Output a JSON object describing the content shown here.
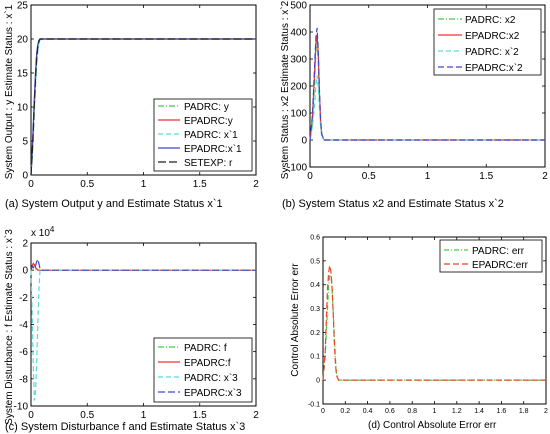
{
  "chart_data": [
    {
      "type": "line",
      "caption": "(a) System Output y and Estimate Status x`1",
      "ylabel": "System Output : y    Estimate Status : x`1",
      "xlabel": "",
      "xlim": [
        0,
        2
      ],
      "ylim": [
        0,
        25
      ],
      "xticks": [
        "0",
        "0.5",
        "1",
        "1.5",
        "2"
      ],
      "yticks": [
        "0",
        "5",
        "10",
        "15",
        "20",
        "25"
      ],
      "legend_position": "lower-right",
      "grid": false,
      "x": [
        0,
        0.01,
        0.02,
        0.03,
        0.04,
        0.05,
        0.06,
        0.07,
        0.08,
        0.1,
        0.15,
        2
      ],
      "series": [
        {
          "name": "PADRC: y",
          "color": "#44cc44",
          "dash": "6,2,1,2",
          "values": [
            0,
            2.5,
            6,
            10,
            13.5,
            16.5,
            18.5,
            19.5,
            19.9,
            20,
            20,
            20
          ]
        },
        {
          "name": "EPADRC:y",
          "color": "#ee3333",
          "dash": "",
          "values": [
            0,
            3,
            7,
            11,
            14.5,
            17.5,
            19,
            19.8,
            20,
            20,
            20,
            20
          ]
        },
        {
          "name": "PADRC: x`1",
          "color": "#55dddd",
          "dash": "5,3",
          "values": [
            0,
            2.2,
            5.5,
            9.5,
            13,
            16,
            18.2,
            19.4,
            19.9,
            20,
            20,
            20
          ]
        },
        {
          "name": "EPADRC:x`1",
          "color": "#4444cc",
          "dash": "",
          "values": [
            0,
            3.2,
            7.5,
            11.5,
            15,
            17.8,
            19.2,
            19.8,
            20,
            20,
            20,
            20
          ]
        },
        {
          "name": "SETEXP: r",
          "color": "#222222",
          "dash": "8,3",
          "values": [
            0,
            2.6,
            6.5,
            10.5,
            14,
            17,
            18.8,
            19.6,
            20,
            20,
            20,
            20
          ]
        }
      ]
    },
    {
      "type": "line",
      "caption": "(b) System Status x2 and Estimate Status x`2",
      "ylabel": "System Status : x2    Estimate Status : x`2",
      "xlabel": "",
      "xlim": [
        0,
        2
      ],
      "ylim": [
        -100,
        500
      ],
      "xticks": [
        "0",
        "0.5",
        "1",
        "1.5",
        "2"
      ],
      "yticks": [
        "-100",
        "0",
        "100",
        "200",
        "300",
        "400",
        "500"
      ],
      "legend_position": "top-right",
      "grid": false,
      "x": [
        0,
        0.02,
        0.04,
        0.05,
        0.06,
        0.07,
        0.08,
        0.09,
        0.1,
        0.12,
        0.15,
        2
      ],
      "series": [
        {
          "name": "PADRC: x2",
          "color": "#44cc44",
          "dash": "6,2,1,2",
          "values": [
            0,
            60,
            220,
            330,
            370,
            300,
            160,
            60,
            15,
            0,
            0,
            0
          ]
        },
        {
          "name": "EPADRC:x2",
          "color": "#ee3333",
          "dash": "",
          "values": [
            0,
            80,
            260,
            360,
            390,
            320,
            180,
            70,
            20,
            0,
            0,
            0
          ]
        },
        {
          "name": "PADRC: x`2",
          "color": "#55dddd",
          "dash": "5,3",
          "values": [
            0,
            50,
            130,
            200,
            240,
            200,
            120,
            50,
            10,
            0,
            0,
            0
          ]
        },
        {
          "name": "EPADRC:x`2",
          "color": "#4444cc",
          "dash": "6,3",
          "values": [
            0,
            90,
            280,
            380,
            415,
            340,
            190,
            75,
            20,
            0,
            0,
            0
          ]
        }
      ]
    },
    {
      "type": "line",
      "caption": "(c) System Disturbance f and Estimate Status x`3",
      "ylabel": "System Disturbance : f    Estimate Status : x`3",
      "xlabel": "",
      "multiplier": "x 10",
      "multiplier_exp": "4",
      "xlim": [
        0,
        2
      ],
      "ylim": [
        -10,
        2
      ],
      "xticks": [
        "0",
        "0.5",
        "1",
        "1.5",
        "2"
      ],
      "yticks": [
        "-10",
        "-8",
        "-6",
        "-4",
        "-2",
        "0",
        "2"
      ],
      "legend_position": "lower-right",
      "grid": false,
      "x": [
        0,
        0.01,
        0.02,
        0.03,
        0.04,
        0.05,
        0.06,
        0.07,
        0.08,
        0.1,
        0.15,
        2
      ],
      "series": [
        {
          "name": "PADRC: f",
          "color": "#44cc44",
          "dash": "6,2,1,2",
          "values": [
            0,
            0.2,
            0.3,
            0.2,
            0.1,
            0,
            0,
            0,
            0,
            0,
            0,
            0
          ]
        },
        {
          "name": "EPADRC:f",
          "color": "#ee3333",
          "dash": "",
          "values": [
            0,
            0.3,
            0.5,
            0.4,
            0.2,
            0.1,
            0,
            0,
            0,
            0,
            0,
            0
          ]
        },
        {
          "name": "PADRC: x`3",
          "color": "#55dddd",
          "dash": "5,3",
          "values": [
            0,
            -3,
            -7,
            -9.6,
            -9,
            -7,
            -4,
            -1.5,
            0,
            0,
            0,
            0
          ]
        },
        {
          "name": "EPADRC:x`3",
          "color": "#4444cc",
          "dash": "7,3",
          "values": [
            0,
            0.3,
            0.2,
            0.1,
            0.3,
            0.6,
            0.8,
            0.5,
            0.1,
            0,
            0,
            0
          ]
        }
      ]
    },
    {
      "type": "line",
      "caption": "(d)  Control Absolute Error err",
      "ylabel": "Control Absolute Error err",
      "xlabel": "",
      "xlim": [
        0,
        2
      ],
      "ylim": [
        -0.1,
        0.6
      ],
      "xticks": [
        "0",
        "0.2",
        "0.4",
        "0.6",
        "0.8",
        "1",
        "1.2",
        "1.4",
        "1.6",
        "1.8",
        "2"
      ],
      "yticks": [
        "-0.1",
        "0",
        "0.1",
        "0.2",
        "0.3",
        "0.4",
        "0.5",
        "0.6"
      ],
      "legend_position": "top-right",
      "grid": false,
      "x": [
        0,
        0.02,
        0.03,
        0.04,
        0.05,
        0.06,
        0.07,
        0.08,
        0.09,
        0.1,
        0.11,
        0.12,
        0.14,
        2
      ],
      "series": [
        {
          "name": "PADRC: err",
          "color": "#44cc44",
          "dash": "5,2,1,2",
          "values": [
            0,
            0.1,
            0.2,
            0.3,
            0.39,
            0.44,
            0.44,
            0.4,
            0.3,
            0.2,
            0.1,
            0.03,
            0,
            0
          ]
        },
        {
          "name": "EPADRC:err",
          "color": "#ee4422",
          "dash": "6,3",
          "values": [
            0,
            0.12,
            0.25,
            0.38,
            0.45,
            0.48,
            0.46,
            0.4,
            0.3,
            0.18,
            0.08,
            0.02,
            0,
            0
          ]
        }
      ]
    }
  ]
}
